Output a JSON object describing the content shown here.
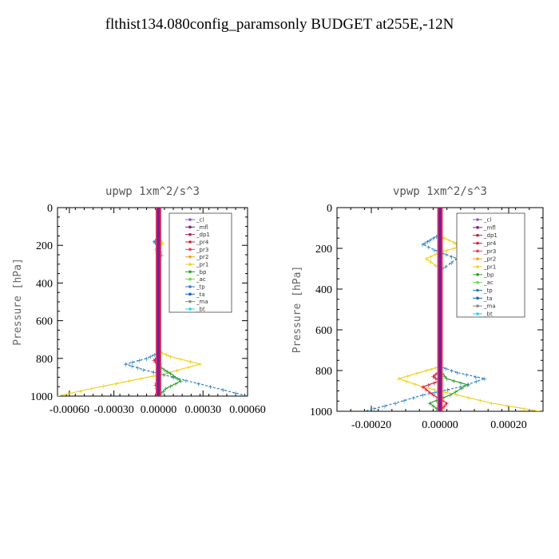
{
  "title": "flthist134.080config_paramsonly  BUDGET at255E,-12N",
  "colors": {
    "cl": "#9a4fd0",
    "mfl": "#7a1f8f",
    "dp1": "#b0224a",
    "pr4": "#d81e3a",
    "pr3": "#f03a5a",
    "pr2": "#f0a020",
    "pr1": "#f0d020",
    "bp": "#2ca02c",
    "ac": "#66dd44",
    "tp": "#2a7fc0",
    "ta": "#1a5fd0",
    "ma": "#888888",
    "bt": "#22d8e0"
  },
  "chart_data": [
    {
      "type": "line",
      "title": "upwp  1xm^2/s^3",
      "ylabel": "Pressure [hPa]",
      "xlabel": "",
      "ylim": [
        1000,
        0
      ],
      "xlim": [
        -0.00068,
        0.0006
      ],
      "xticks": [
        -0.0006,
        -0.0003,
        0.0,
        0.0003,
        0.0006
      ],
      "xtick_labels": [
        "-0.00060",
        "-0.00030",
        "0.00000",
        "0.00030",
        "0.00060"
      ],
      "yticks": [
        0,
        200,
        400,
        600,
        800,
        1000
      ],
      "ytick_labels": [
        "0",
        "200",
        "400",
        "600",
        "800",
        "1000"
      ],
      "legend": [
        "_cl",
        "_mfl",
        "_dp1",
        "_pr4",
        "_pr3",
        "_pr2",
        "_pr1",
        "_bp",
        "_ac",
        "_tp",
        "_ta",
        "_ma",
        "_bt"
      ],
      "legend_position": "top-right",
      "series": [
        {
          "key": "pr1",
          "name": "_pr1",
          "points": [
            [
              0.0,
              0
            ],
            [
              0.0,
              160
            ],
            [
              3e-05,
              190
            ],
            [
              -2e-05,
              220
            ],
            [
              0.0,
              280
            ],
            [
              0.0,
              760
            ],
            [
              8e-05,
              790
            ],
            [
              0.00028,
              830
            ],
            [
              5e-05,
              880
            ],
            [
              -0.0002,
              920
            ],
            [
              -0.00045,
              960
            ],
            [
              -0.00068,
              1000
            ]
          ]
        },
        {
          "key": "tp",
          "name": "_tp",
          "points": [
            [
              0.0,
              0
            ],
            [
              0.0,
              160
            ],
            [
              -3e-05,
              180
            ],
            [
              0.0,
              200
            ],
            [
              2e-05,
              250
            ],
            [
              0.0,
              280
            ],
            [
              0.0,
              770
            ],
            [
              -8e-05,
              800
            ],
            [
              -0.00022,
              830
            ],
            [
              -0.0001,
              860
            ],
            [
              0.0001,
              900
            ],
            [
              0.00035,
              950
            ],
            [
              0.0006,
              1000
            ]
          ]
        },
        {
          "key": "bp",
          "name": "_bp",
          "points": [
            [
              0.0,
              0
            ],
            [
              0.0,
              780
            ],
            [
              2e-05,
              850
            ],
            [
              8e-05,
              880
            ],
            [
              0.00015,
              920
            ],
            [
              5e-05,
              960
            ],
            [
              0.0,
              1000
            ]
          ]
        },
        {
          "key": "pr4",
          "name": "_pr4",
          "points": [
            [
              0.0,
              0
            ],
            [
              0.0,
              790
            ],
            [
              -3e-05,
              810
            ],
            [
              0.0,
              830
            ],
            [
              0.0,
              900
            ],
            [
              -2e-05,
              940
            ],
            [
              0.0,
              1000
            ]
          ]
        },
        {
          "key": "mfl",
          "name": "_mfl",
          "points": [
            [
              0.0,
              0
            ],
            [
              0.0,
              1000
            ]
          ]
        }
      ]
    },
    {
      "type": "line",
      "title": "vpwp  1xm^2/s^3",
      "ylabel": "Pressure [hPa]",
      "xlabel": "",
      "ylim": [
        1000,
        0
      ],
      "xlim": [
        -0.0003,
        0.0003
      ],
      "xticks": [
        -0.0002,
        0.0,
        0.0002
      ],
      "xtick_labels": [
        "-0.00020",
        "0.00000",
        "0.00020"
      ],
      "yticks": [
        0,
        200,
        400,
        600,
        800,
        1000
      ],
      "ytick_labels": [
        "0",
        "200",
        "400",
        "600",
        "800",
        "1000"
      ],
      "legend": [
        "_cl",
        "_mfl",
        "_dp1",
        "_pr4",
        "_pr3",
        "_pr2",
        "_pr1",
        "_bp",
        "_ac",
        "_tp",
        "_ta",
        "_ma",
        "_bt"
      ],
      "legend_position": "top-right",
      "series": [
        {
          "key": "pr1",
          "name": "_pr1",
          "points": [
            [
              0.0,
              0
            ],
            [
              0.0,
              140
            ],
            [
              4e-05,
              170
            ],
            [
              6e-05,
              190
            ],
            [
              0.0,
              220
            ],
            [
              -4e-05,
              250
            ],
            [
              0.0,
              300
            ],
            [
              0.0,
              780
            ],
            [
              -4e-05,
              800
            ],
            [
              -0.00012,
              840
            ],
            [
              -5e-05,
              880
            ],
            [
              5e-05,
              920
            ],
            [
              0.00015,
              960
            ],
            [
              0.00029,
              1000
            ]
          ]
        },
        {
          "key": "tp",
          "name": "_tp",
          "points": [
            [
              0.0,
              0
            ],
            [
              0.0,
              130
            ],
            [
              -3e-05,
              160
            ],
            [
              -5e-05,
              180
            ],
            [
              0.0,
              220
            ],
            [
              5e-05,
              250
            ],
            [
              0.0,
              310
            ],
            [
              0.0,
              780
            ],
            [
              5e-05,
              810
            ],
            [
              0.00013,
              840
            ],
            [
              6e-05,
              880
            ],
            [
              -5e-05,
              920
            ],
            [
              -0.00013,
              960
            ],
            [
              -0.00022,
              1000
            ]
          ]
        },
        {
          "key": "bp",
          "name": "_bp",
          "points": [
            [
              0.0,
              0
            ],
            [
              0.0,
              800
            ],
            [
              2e-05,
              840
            ],
            [
              8e-05,
              870
            ],
            [
              3e-05,
              920
            ],
            [
              -3e-05,
              960
            ],
            [
              0.0,
              1000
            ]
          ]
        },
        {
          "key": "pr4",
          "name": "_pr4",
          "points": [
            [
              0.0,
              0
            ],
            [
              0.0,
              800
            ],
            [
              -2e-05,
              830
            ],
            [
              0.0,
              850
            ],
            [
              -5e-05,
              880
            ],
            [
              -2e-05,
              920
            ],
            [
              2e-05,
              960
            ],
            [
              0.0,
              1000
            ]
          ]
        },
        {
          "key": "mfl",
          "name": "_mfl",
          "points": [
            [
              0.0,
              0
            ],
            [
              0.0,
              1000
            ]
          ]
        }
      ]
    }
  ]
}
